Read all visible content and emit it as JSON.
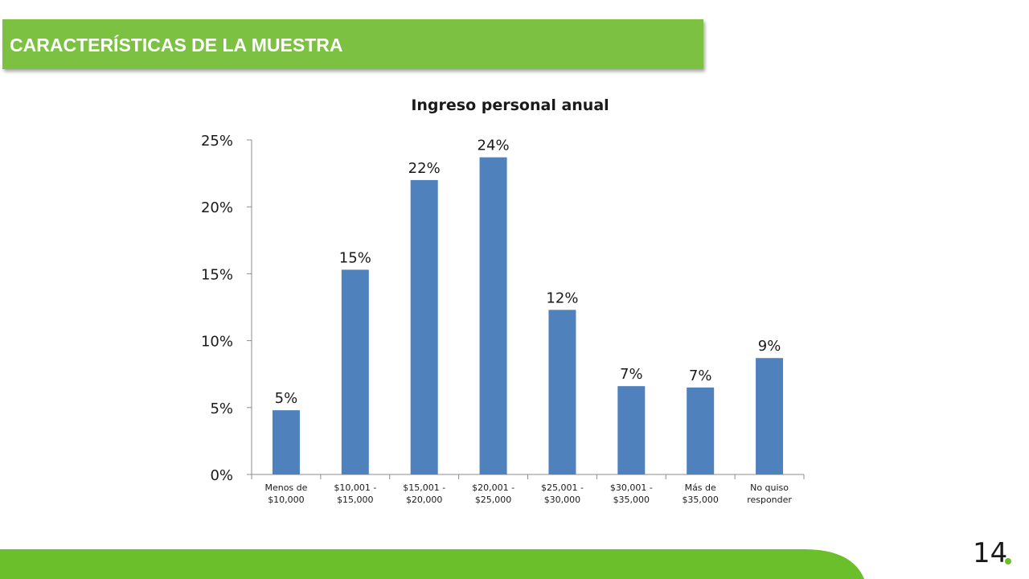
{
  "header": {
    "title": "CARACTERÍSTICAS DE LA MUESTRA"
  },
  "page": {
    "number": "14"
  },
  "colors": {
    "brand_green": "#7cc142",
    "footer_green": "#6bbf2a",
    "bar_blue": "#4f81bd"
  },
  "chart_data": {
    "type": "bar",
    "title": "Ingreso personal anual",
    "xlabel": "",
    "ylabel": "",
    "categories": [
      [
        "Menos de",
        "$10,000"
      ],
      [
        "$10,001 -",
        "$15,000"
      ],
      [
        "$15,001 -",
        "$20,000"
      ],
      [
        "$20,001 -",
        "$25,000"
      ],
      [
        "$25,001 -",
        "$30,000"
      ],
      [
        "$30,001 -",
        "$35,000"
      ],
      [
        "Más de",
        "$35,000"
      ],
      [
        "No quiso",
        "responder"
      ]
    ],
    "values": [
      4.8,
      15.3,
      22.0,
      23.7,
      12.3,
      6.6,
      6.5,
      8.7
    ],
    "data_labels": [
      "5%",
      "15%",
      "22%",
      "24%",
      "12%",
      "7%",
      "7%",
      "9%"
    ],
    "ylim": [
      0,
      25
    ],
    "yticks": [
      0,
      5,
      10,
      15,
      20,
      25
    ],
    "ytick_labels": [
      "0%",
      "5%",
      "10%",
      "15%",
      "20%",
      "25%"
    ],
    "grid": false,
    "legend": "none"
  }
}
